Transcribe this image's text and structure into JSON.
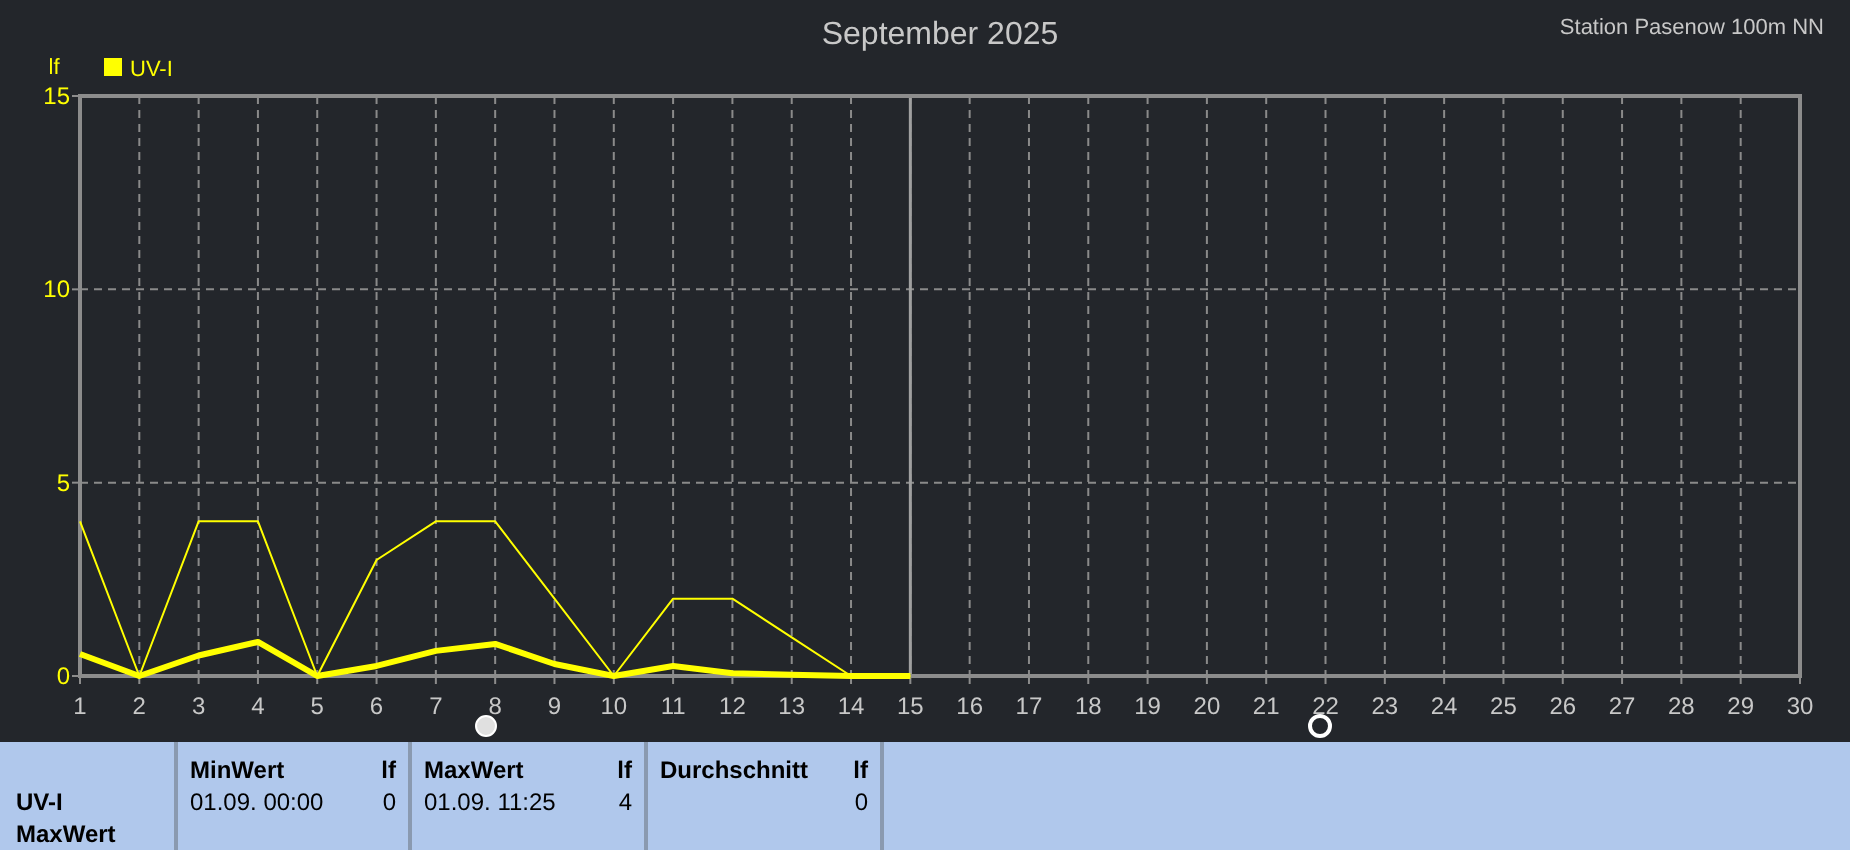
{
  "chart_data": {
    "type": "line",
    "title": "September 2025",
    "subtitle": "Station Pasenow 100m NN",
    "ylabel": "lf",
    "x": [
      1,
      2,
      3,
      4,
      5,
      6,
      7,
      8,
      9,
      10,
      11,
      12,
      13,
      14,
      15
    ],
    "series": [
      {
        "name": "UV-I",
        "color": "#ffff00",
        "values": [
          4,
          0,
          4,
          4,
          0,
          3,
          4,
          4,
          2,
          0,
          2,
          2,
          1,
          0,
          0
        ]
      },
      {
        "color": "#ffff00",
        "values": [
          0.57,
          0,
          0.53,
          0.88,
          0,
          0.26,
          0.65,
          0.83,
          0.31,
          0,
          0.26,
          0.07,
          0.03,
          0,
          0
        ]
      }
    ],
    "xlim": [
      1,
      30
    ],
    "xticks": [
      1,
      2,
      3,
      4,
      5,
      6,
      7,
      8,
      9,
      10,
      11,
      12,
      13,
      14,
      15,
      16,
      17,
      18,
      19,
      20,
      21,
      22,
      23,
      24,
      25,
      26,
      27,
      28,
      29,
      30
    ],
    "ylim": [
      0,
      15
    ],
    "yticks": [
      0,
      5,
      10,
      15
    ],
    "grid": true,
    "legend": "top left",
    "marker": "none",
    "ref_lines": [
      {
        "axis": "x",
        "value": 15,
        "color": "#a0a0a0"
      }
    ],
    "annotations": [
      "UV-I",
      "MaxWert",
      "MinWert",
      "lf",
      "01.09.  00:00",
      "0",
      "MaxWert",
      "lf",
      "01.09.  11:25",
      "4",
      "Durchschnitt",
      "lf",
      "0"
    ]
  }
}
